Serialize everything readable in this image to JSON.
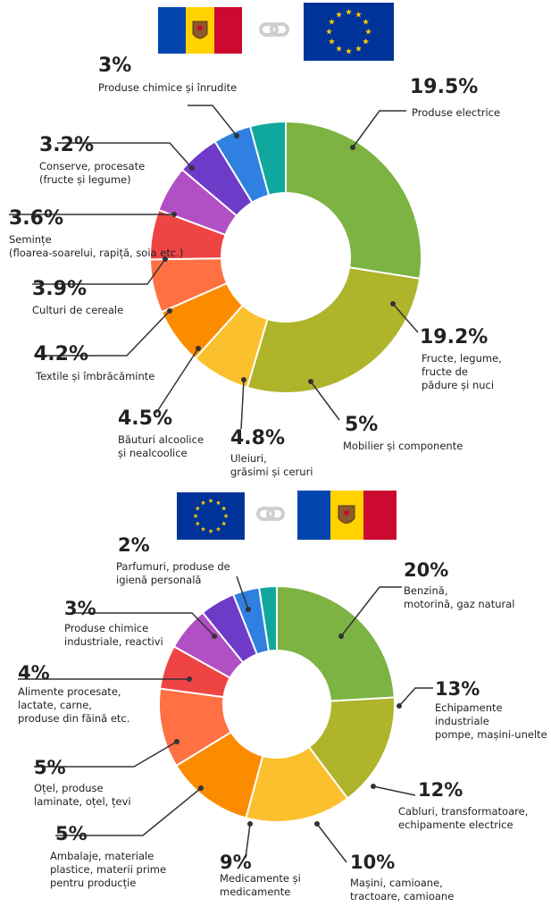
{
  "flags": {
    "moldova": {
      "colors": [
        "#0046ae",
        "#ffd200",
        "#cc092f"
      ]
    },
    "eu": {
      "background": "#003399",
      "stars": "#ffcc00"
    },
    "link_icon": "chain-link-icon"
  },
  "chart_data": [
    {
      "type": "pie",
      "donut": true,
      "direction": "Moldova → EU",
      "slices": [
        {
          "label": "Produse electrice",
          "value": 19.5,
          "pct": "19.5%",
          "color": "#7cb342"
        },
        {
          "label": "Fructe, legume, fructe de pădure și nuci",
          "value": 19.2,
          "pct": "19.2%",
          "color": "#afb42b"
        },
        {
          "label": "Mobilier și componente",
          "value": 5,
          "pct": "5%",
          "color": "#fbc02d"
        },
        {
          "label": "Uleiuri, grăsimi și ceruri",
          "value": 4.8,
          "pct": "4.8%",
          "color": "#fb8c00"
        },
        {
          "label": "Băuturi alcoolice și nealcoolice",
          "value": 4.5,
          "pct": "4.5%",
          "color": "#ff7043"
        },
        {
          "label": "Textile și îmbrăcăminte",
          "value": 4.2,
          "pct": "4.2%",
          "color": "#ef4444"
        },
        {
          "label": "Culturi de cereale",
          "value": 3.9,
          "pct": "3.9%",
          "color": "#b14fc4"
        },
        {
          "label": "Semințe (floarea-soarelui, rapiță, soia etc.)",
          "value": 3.6,
          "pct": "3.6%",
          "color": "#6d3bc8"
        },
        {
          "label": "Conserve, procesate (fructe și legume)",
          "value": 3.2,
          "pct": "3.2%",
          "color": "#2f80e0"
        },
        {
          "label": "Produse chimice și înrudite",
          "value": 3,
          "pct": "3%",
          "color": "#10a89c"
        }
      ]
    },
    {
      "type": "pie",
      "donut": true,
      "direction": "EU → Moldova",
      "slices": [
        {
          "label": "Benzină, motorină, gaz natural",
          "value": 20,
          "pct": "20%",
          "color": "#7cb342"
        },
        {
          "label": "Echipamente industriale pompe, mașini-unelte",
          "value": 13,
          "pct": "13%",
          "color": "#afb42b"
        },
        {
          "label": "Cabluri, transformatoare, echipamente electrice",
          "value": 12,
          "pct": "12%",
          "color": "#fbc02d"
        },
        {
          "label": "Mașini, camioane, tractoare, camioane",
          "value": 10,
          "pct": "10%",
          "color": "#fb8c00"
        },
        {
          "label": "Medicamente și medicamente",
          "value": 9,
          "pct": "9%",
          "color": "#ff7043"
        },
        {
          "label": "Ambalaje, materiale plastice, materii prime pentru producție",
          "value": 5,
          "pct": "5%",
          "color": "#ef4444"
        },
        {
          "label": "Oțel, produse laminate, oțel, țevi",
          "value": 5,
          "pct": "5%",
          "color": "#b14fc4"
        },
        {
          "label": "Alimente procesate, lactate, carne, produse din făină etc.",
          "value": 4,
          "pct": "4%",
          "color": "#6d3bc8"
        },
        {
          "label": "Produse chimice industriale, reactivi",
          "value": 3,
          "pct": "3%",
          "color": "#2f80e0"
        },
        {
          "label": "Parfumuri, produse de igienă personală",
          "value": 2,
          "pct": "2%",
          "color": "#10a89c"
        }
      ]
    }
  ]
}
